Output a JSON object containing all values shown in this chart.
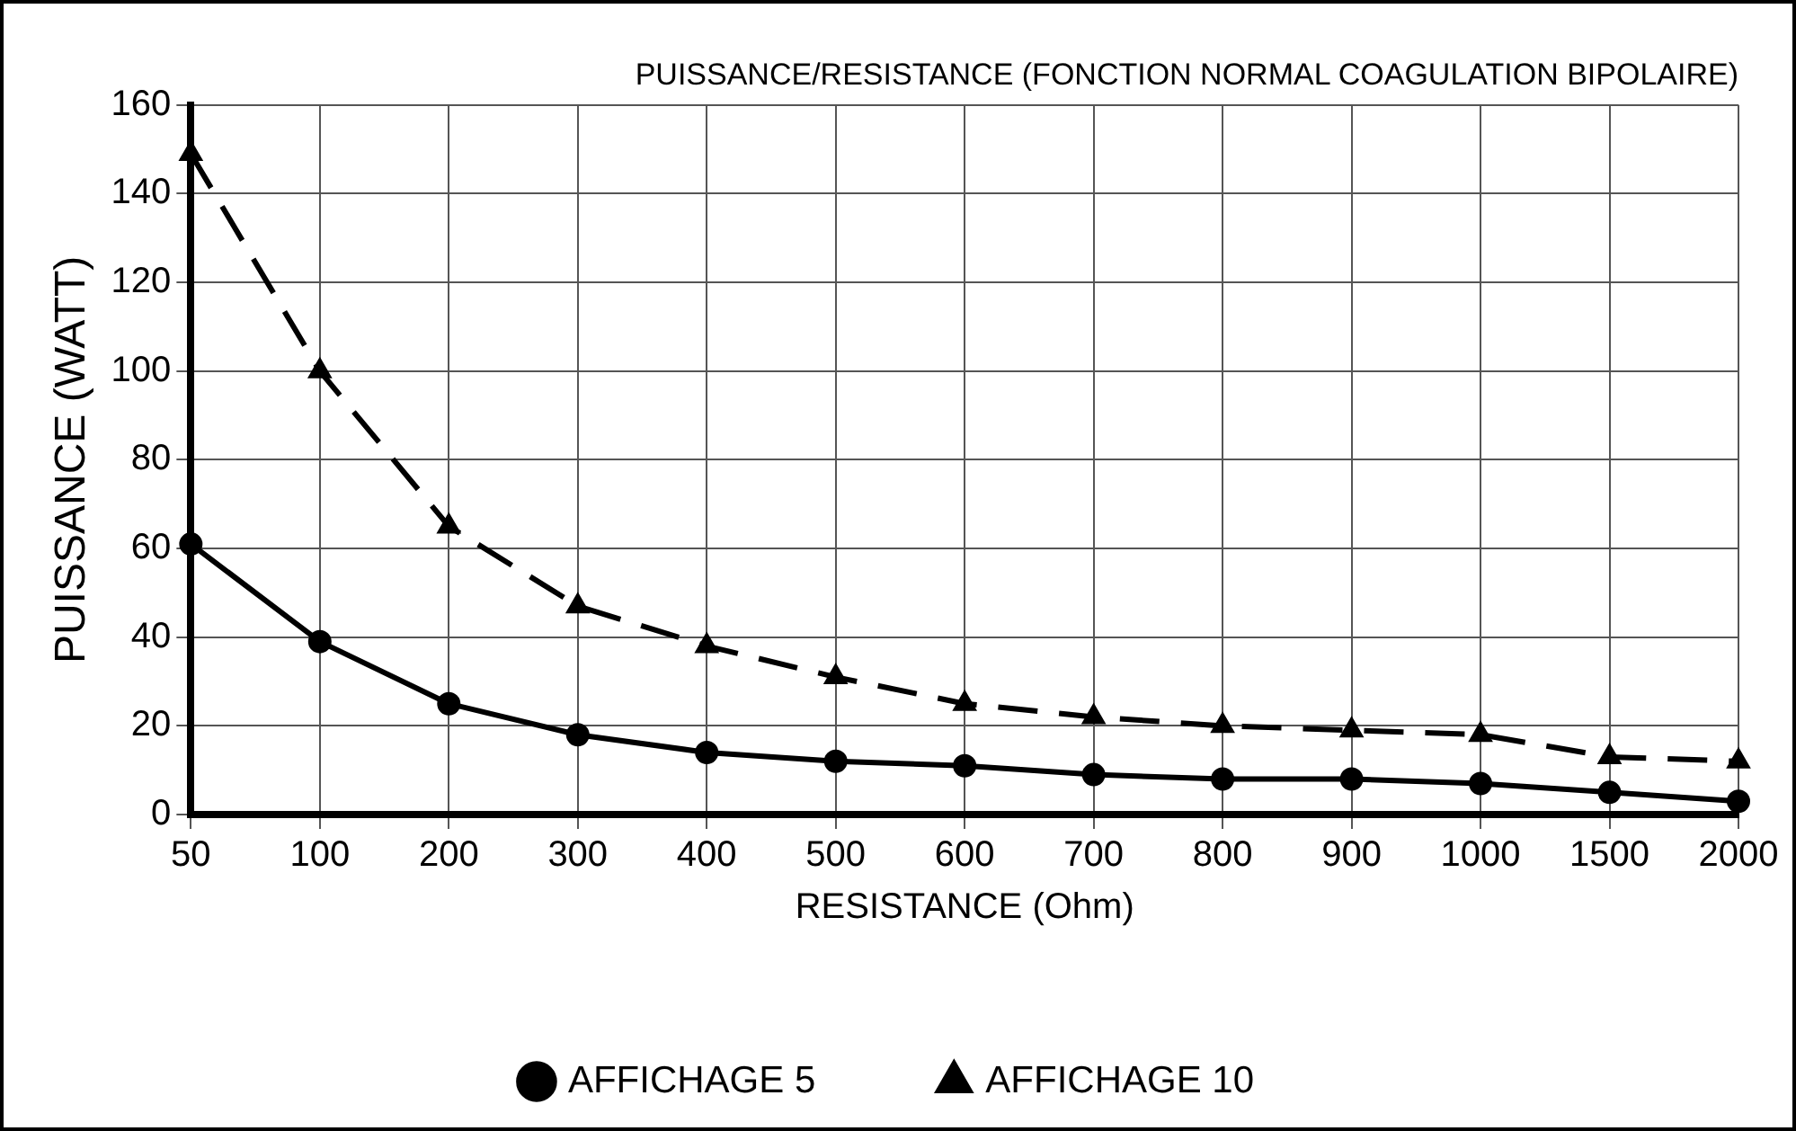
{
  "chart_data": {
    "type": "line",
    "title": "PUISSANCE/RESISTANCE (FONCTION NORMAL COAGULATION BIPOLAIRE)",
    "xlabel": "RESISTANCE (Ohm)",
    "ylabel": "PUISSANCE (WATT)",
    "categories": [
      "50",
      "100",
      "200",
      "300",
      "400",
      "500",
      "600",
      "700",
      "800",
      "900",
      "1000",
      "1500",
      "2000"
    ],
    "ylim": [
      0,
      160
    ],
    "yticks": [
      0,
      20,
      40,
      60,
      80,
      100,
      120,
      140,
      160
    ],
    "grid": true,
    "legend": "bottom",
    "series": [
      {
        "name": "AFFICHAGE 5",
        "color": "#000000",
        "marker": "circle",
        "line_style": "solid",
        "values": [
          61,
          39,
          25,
          18,
          14,
          12,
          11,
          9,
          8,
          8,
          7,
          5,
          3
        ]
      },
      {
        "name": "AFFICHAGE 10",
        "color": "#000000",
        "marker": "triangle",
        "line_style": "dashed",
        "values": [
          149,
          100,
          65,
          47,
          38,
          31,
          25,
          22,
          20,
          19,
          18,
          13,
          12
        ]
      }
    ]
  }
}
